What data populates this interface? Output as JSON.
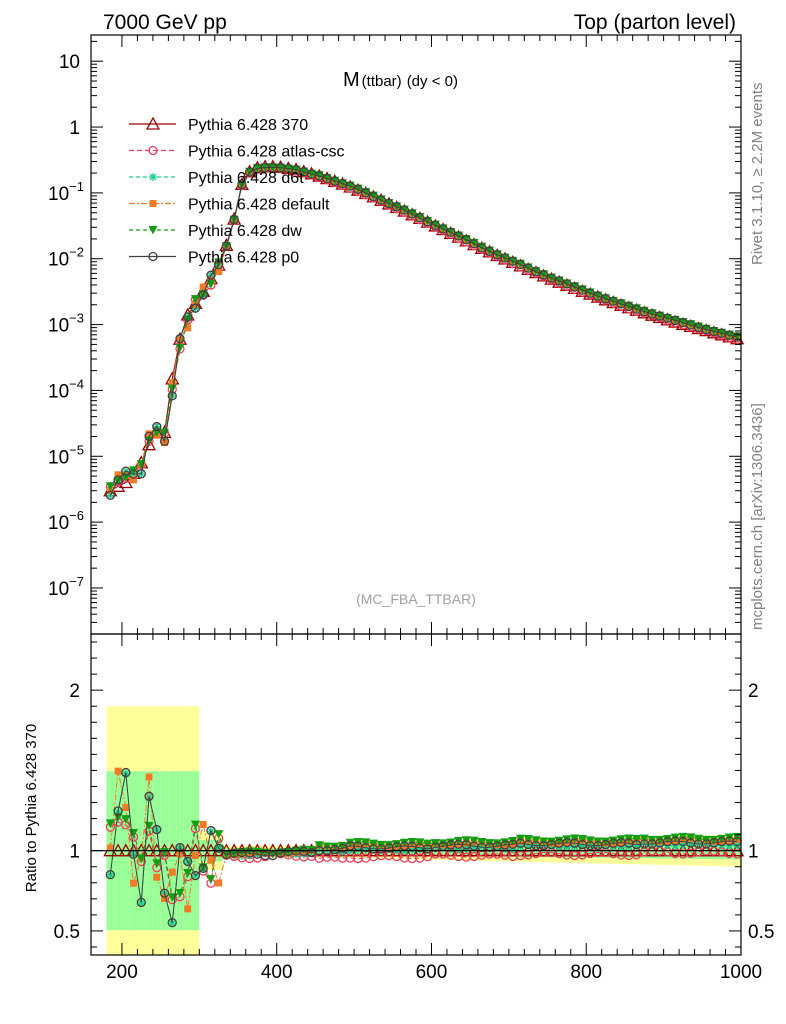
{
  "header": {
    "left": "7000 GeV pp",
    "right": "Top (parton level)"
  },
  "plot_title": {
    "main": "M",
    "sub": "(ttbar)",
    "cond": "(dy < 0)"
  },
  "watermark": "(MC_FBA_TTBAR)",
  "side_labels": {
    "rivet": "Rivet 3.1.10, ≥ 2.2M events",
    "mcplots": "mcplots.cern.ch [arXiv:1306.3436]"
  },
  "colors": {
    "p370": "#9b0000",
    "atlas": "#ef3b5a",
    "d6t": "#1fcf8f",
    "default": "#f07b27",
    "dw": "#129e12",
    "p0": "#404040",
    "band_yellow": "#ffff99",
    "band_green": "#99ff99"
  },
  "chart_data": [
    {
      "type": "line",
      "yscale": "log",
      "xlim": [
        160,
        1000
      ],
      "ylim": [
        2e-08,
        25
      ],
      "yticks": [
        {
          "v": 1e-07,
          "label": "10",
          "exp": "−7"
        },
        {
          "v": 1e-06,
          "label": "10",
          "exp": "−6"
        },
        {
          "v": 1e-05,
          "label": "10",
          "exp": "−5"
        },
        {
          "v": 0.0001,
          "label": "10",
          "exp": "−4"
        },
        {
          "v": 0.001,
          "label": "10",
          "exp": "−3"
        },
        {
          "v": 0.01,
          "label": "10",
          "exp": "−2"
        },
        {
          "v": 0.1,
          "label": "10",
          "exp": "−1"
        },
        {
          "v": 1,
          "label": "1",
          "exp": ""
        },
        {
          "v": 10,
          "label": "10",
          "exp": ""
        }
      ],
      "legend_position": "top-left",
      "series": [
        {
          "name": "Pythia 6.428 370",
          "key": "p370",
          "marker": "triangle-open",
          "dash": "",
          "ratio_offset": 0.0
        },
        {
          "name": "Pythia 6.428 atlas-csc",
          "key": "atlas",
          "marker": "circle-open",
          "dash": "5,3",
          "ratio_offset": -0.03
        },
        {
          "name": "Pythia 6.428 d6t",
          "key": "d6t",
          "marker": "star",
          "dash": "4,3",
          "ratio_offset": 0.02
        },
        {
          "name": "Pythia 6.428 default",
          "key": "default",
          "marker": "square-filled",
          "dash": "6,2,2,2",
          "ratio_offset": 0.045
        },
        {
          "name": "Pythia 6.428 dw",
          "key": "dw",
          "marker": "triangle-down-filled",
          "dash": "4,3",
          "ratio_offset": 0.055
        },
        {
          "name": "Pythia 6.428 p0",
          "key": "p0",
          "marker": "circle-open",
          "dash": "",
          "ratio_offset": 0.03
        }
      ],
      "x": [
        185,
        195,
        205,
        215,
        225,
        235,
        245,
        255,
        265,
        275,
        285,
        295,
        305,
        315,
        325,
        335,
        345,
        355,
        365,
        375,
        385,
        395,
        405,
        415,
        425,
        435,
        445,
        455,
        465,
        475,
        485,
        495,
        505,
        515,
        525,
        535,
        545,
        555,
        565,
        575,
        585,
        595,
        605,
        615,
        625,
        635,
        645,
        655,
        665,
        675,
        685,
        695,
        705,
        715,
        725,
        735,
        745,
        755,
        765,
        775,
        785,
        795,
        805,
        815,
        825,
        835,
        845,
        855,
        865,
        875,
        885,
        895,
        905,
        915,
        925,
        935,
        945,
        955,
        965,
        975,
        985,
        995
      ],
      "reference_values": [
        3e-06,
        3.5e-06,
        4e-06,
        5.5e-06,
        8e-06,
        1.5e-05,
        2.5e-05,
        2.3e-05,
        0.00015,
        0.0006,
        0.0014,
        0.0021,
        0.0032,
        0.005,
        0.008,
        0.016,
        0.04,
        0.135,
        0.21,
        0.24,
        0.25,
        0.25,
        0.245,
        0.235,
        0.225,
        0.21,
        0.195,
        0.18,
        0.165,
        0.15,
        0.136,
        0.123,
        0.11,
        0.098,
        0.087,
        0.077,
        0.068,
        0.06,
        0.053,
        0.0465,
        0.041,
        0.036,
        0.0315,
        0.0277,
        0.0243,
        0.0213,
        0.0187,
        0.0164,
        0.0144,
        0.0127,
        0.0112,
        0.0099,
        0.0088,
        0.0078,
        0.0069,
        0.00615,
        0.0055,
        0.0049,
        0.0044,
        0.00395,
        0.00355,
        0.0032,
        0.0029,
        0.00262,
        0.00238,
        0.00216,
        0.00197,
        0.0018,
        0.00165,
        0.00151,
        0.00139,
        0.00128,
        0.00118,
        0.00109,
        0.00101,
        0.00094,
        0.00087,
        0.00081,
        0.00075,
        0.0007,
        0.00065,
        0.00061
      ]
    },
    {
      "type": "line",
      "ylabel": "Ratio to Pythia 6.428 370",
      "xlim": [
        160,
        1000
      ],
      "ylim": [
        0.35,
        2.35
      ],
      "xticks": [
        200,
        400,
        600,
        800,
        1000
      ],
      "yticks": [
        0.5,
        1,
        2
      ],
      "reference_line": 1,
      "ratio_values": [
        1.0,
        1.3,
        1.3,
        0.95,
        0.85,
        1.3,
        0.95,
        0.8,
        0.7,
        0.9,
        0.8,
        0.98,
        0.97,
        0.95,
        0.96,
        0.97,
        0.97,
        0.97,
        0.97,
        0.97,
        0.97,
        0.97,
        0.98,
        0.98,
        0.98,
        0.98,
        0.98,
        0.98,
        0.98,
        0.98,
        0.98,
        0.99,
        0.99,
        0.99,
        0.99,
        0.99,
        0.99,
        0.99,
        0.99,
        0.99,
        0.99,
        0.99,
        1.0,
        1.0,
        1.0,
        1.0,
        1.0,
        1.0,
        1.0,
        1.0,
        1.0,
        1.0,
        1.0,
        1.01,
        1.01,
        1.01,
        1.01,
        1.01,
        1.01,
        1.01,
        1.01,
        1.01,
        1.01,
        1.01,
        1.01,
        1.01,
        1.01,
        1.01,
        1.01,
        1.02,
        1.02,
        1.02,
        1.02,
        1.02,
        1.02,
        1.02,
        1.02,
        1.02,
        1.02,
        1.02,
        1.02,
        1.02
      ]
    }
  ]
}
